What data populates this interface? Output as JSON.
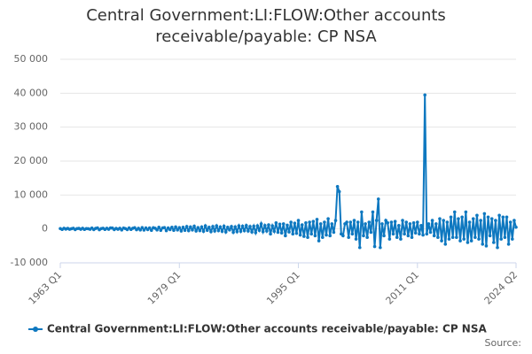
{
  "chart_data": {
    "type": "line",
    "title": "Central Government:LI:FLOW:Other accounts receivable/payable: CP NSA",
    "source_label": "Source:",
    "categories": [
      "1963 Q1",
      null,
      null,
      null,
      null,
      null,
      null,
      null,
      null,
      null,
      null,
      null,
      null,
      null,
      null,
      null,
      null,
      null,
      null,
      null,
      null,
      null,
      null,
      null,
      null,
      null,
      null,
      null,
      null,
      null,
      null,
      null,
      null,
      null,
      null,
      null,
      null,
      null,
      null,
      null,
      null,
      null,
      null,
      null,
      null,
      null,
      null,
      null,
      null,
      null,
      null,
      null,
      null,
      null,
      null,
      null,
      null,
      null,
      null,
      null,
      null,
      null,
      null,
      null,
      "1979 Q1",
      null,
      null,
      null,
      null,
      null,
      null,
      null,
      null,
      null,
      null,
      null,
      null,
      null,
      null,
      null,
      null,
      null,
      null,
      null,
      null,
      null,
      null,
      null,
      null,
      null,
      null,
      null,
      null,
      null,
      null,
      null,
      null,
      null,
      null,
      null,
      null,
      null,
      null,
      null,
      null,
      null,
      null,
      null,
      null,
      null,
      null,
      null,
      null,
      null,
      null,
      null,
      null,
      null,
      null,
      null,
      null,
      null,
      null,
      null,
      null,
      null,
      null,
      null,
      "1995 Q1",
      null,
      null,
      null,
      null,
      null,
      null,
      null,
      null,
      null,
      null,
      null,
      null,
      null,
      null,
      null,
      null,
      null,
      null,
      null,
      null,
      null,
      null,
      null,
      null,
      null,
      null,
      null,
      null,
      null,
      null,
      null,
      null,
      null,
      null,
      null,
      null,
      null,
      null,
      null,
      null,
      null,
      null,
      null,
      null,
      null,
      null,
      null,
      null,
      null,
      null,
      null,
      null,
      null,
      null,
      null,
      null,
      null,
      null,
      null,
      null,
      null,
      null,
      null,
      "2011 Q1",
      null,
      null,
      null,
      null,
      null,
      null,
      null,
      null,
      null,
      null,
      null,
      null,
      null,
      null,
      null,
      null,
      null,
      null,
      null,
      null,
      null,
      null,
      null,
      null,
      null,
      null,
      null,
      null,
      null,
      null,
      null,
      null,
      null,
      null,
      null,
      null,
      null,
      null,
      null,
      null,
      null,
      null,
      null,
      null,
      null,
      null,
      null,
      null,
      null,
      null,
      null,
      null,
      "2024 Q2"
    ],
    "series": [
      {
        "name": "Central Government:LI:FLOW:Other accounts receivable/payable: CP NSA",
        "color": "#0e78c0",
        "values": [
          100,
          -150,
          200,
          -50,
          150,
          -100,
          50,
          200,
          -200,
          100,
          150,
          -100,
          200,
          -150,
          100,
          50,
          -100,
          250,
          -200,
          150,
          300,
          -250,
          100,
          200,
          -150,
          200,
          -100,
          300,
          250,
          -200,
          150,
          -100,
          200,
          -300,
          250,
          100,
          -200,
          300,
          -150,
          200,
          350,
          -250,
          200,
          -300,
          400,
          -350,
          300,
          -200,
          300,
          -400,
          350,
          200,
          -300,
          500,
          -400,
          300,
          400,
          -500,
          300,
          -200,
          500,
          -400,
          600,
          -300,
          400,
          -600,
          500,
          -400,
          700,
          -500,
          600,
          -300,
          800,
          -600,
          400,
          -500,
          600,
          -700,
          900,
          -400,
          500,
          -800,
          700,
          -600,
          900,
          -500,
          600,
          -700,
          800,
          -900,
          500,
          -300,
          700,
          -1000,
          600,
          -800,
          900,
          -700,
          800,
          -500,
          1000,
          -600,
          700,
          -900,
          800,
          -1100,
          900,
          -400,
          1500,
          -800,
          1000,
          -600,
          1200,
          -1500,
          900,
          -700,
          1800,
          -1000,
          1400,
          -1200,
          1500,
          -2000,
          1100,
          -900,
          2000,
          -1500,
          1700,
          -1300,
          2500,
          -1800,
          1200,
          -2200,
          1800,
          -2500,
          2000,
          -1500,
          2200,
          -2000,
          2800,
          -3500,
          1500,
          -2500,
          2000,
          -1800,
          3000,
          -2000,
          1500,
          -1000,
          2500,
          12500,
          11000,
          -1500,
          -2000,
          1500,
          2000,
          -2500,
          2000,
          -1500,
          2500,
          -3000,
          2000,
          -5500,
          5000,
          -2000,
          1500,
          -2500,
          2000,
          -1000,
          5000,
          -5200,
          2500,
          8800,
          -5500,
          1500,
          -2000,
          2500,
          1800,
          -3000,
          2000,
          -1500,
          2200,
          -2500,
          1000,
          -3000,
          2500,
          -1500,
          2000,
          -2000,
          1500,
          -2500,
          1800,
          -1200,
          2000,
          -1500,
          1000,
          -1800,
          39500,
          -1500,
          1500,
          -1000,
          2500,
          -2000,
          1500,
          -2500,
          3000,
          -3500,
          2500,
          -4500,
          2000,
          -3000,
          3500,
          -2500,
          5000,
          -2500,
          3000,
          -3500,
          3500,
          -3000,
          5000,
          -4000,
          2000,
          -3500,
          3000,
          -2500,
          4000,
          -3000,
          2500,
          -4500,
          4500,
          -5000,
          3500,
          -2000,
          3000,
          -4000,
          2500,
          -5500,
          4000,
          -3000,
          3500,
          -2500,
          3500,
          -4500,
          2000,
          -3000,
          2500,
          500
        ]
      }
    ],
    "ylim": [
      -10000,
      50000
    ],
    "yticks": [
      {
        "value": -10000,
        "label": "-10 000"
      },
      0,
      {
        "value": 10000,
        "label": "10 000"
      },
      {
        "value": 20000,
        "label": "20 000"
      },
      {
        "value": 30000,
        "label": "30 000"
      },
      {
        "value": 40000,
        "label": "40 000"
      },
      {
        "value": 50000,
        "label": "50 000"
      }
    ],
    "grid": true,
    "legend": "bottom"
  }
}
